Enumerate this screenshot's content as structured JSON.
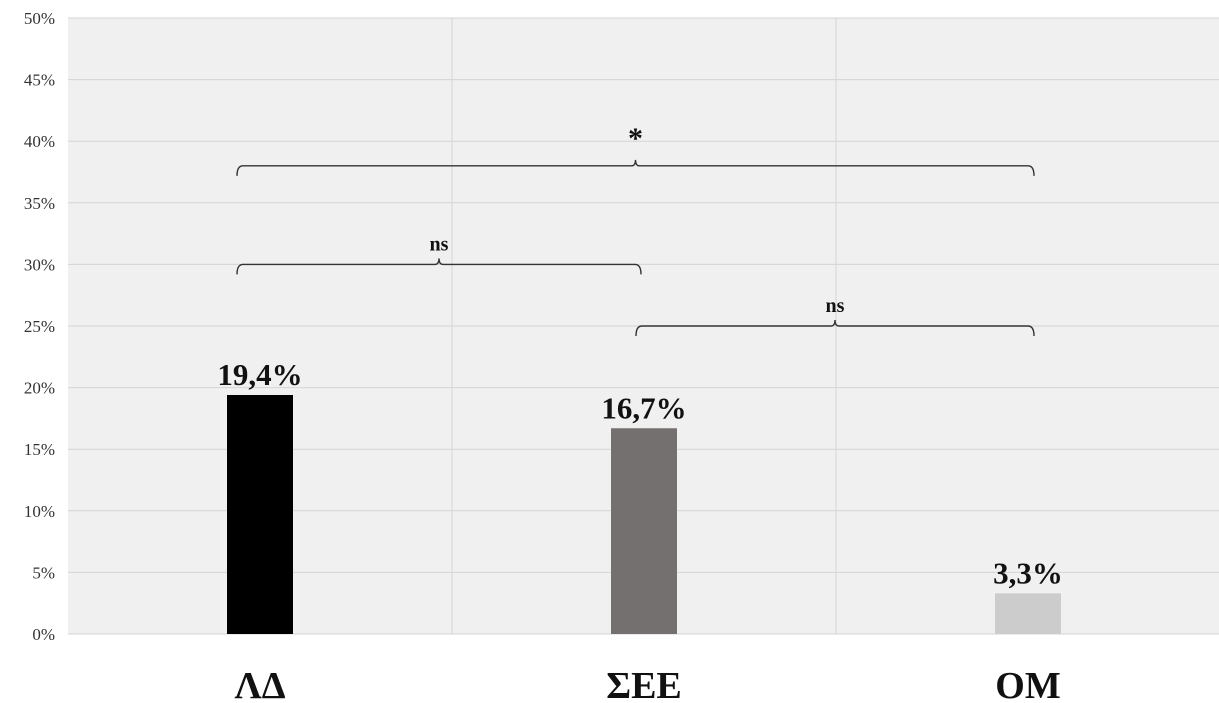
{
  "chart_data": {
    "type": "bar",
    "categories": [
      "ΛΔ",
      "ΣΕΕ",
      "ΟΜ"
    ],
    "values": [
      19.4,
      16.7,
      3.3
    ],
    "data_labels": [
      "19,4%",
      "16,7%",
      "3,3%"
    ],
    "colors": [
      "#000000",
      "#757070",
      "#cccccc"
    ],
    "ylim": [
      0,
      50
    ],
    "yticks": [
      "0%",
      "5%",
      "10%",
      "15%",
      "20%",
      "25%",
      "30%",
      "35%",
      "40%",
      "45%",
      "50%"
    ],
    "grid": true,
    "plot_background": "#f0f0f0",
    "title": "",
    "xlabel": "",
    "ylabel": "",
    "significance": [
      {
        "from": 0,
        "to": 2,
        "label": "*",
        "level": 38
      },
      {
        "from": 0,
        "to": 1,
        "label": "ns",
        "level": 30
      },
      {
        "from": 1,
        "to": 2,
        "label": "ns",
        "level": 25
      }
    ]
  }
}
